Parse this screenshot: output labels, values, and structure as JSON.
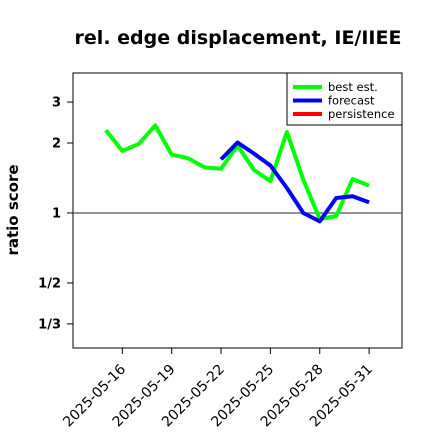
{
  "chart_data": {
    "type": "line",
    "title": "rel. edge displacement, IE/IIEE",
    "xlabel": "",
    "ylabel": "ratio score",
    "y_scale": "log",
    "ylim": [
      0.2625,
      4.0
    ],
    "reference_line": 1,
    "yticks": [
      {
        "value": 3,
        "label": "3"
      },
      {
        "value": 2,
        "label": "2"
      },
      {
        "value": 1,
        "label": "1"
      },
      {
        "value": 0.5,
        "label": "1/2"
      },
      {
        "value": 0.3333,
        "label": "1/3"
      }
    ],
    "xlim": [
      "2025-05-13",
      "2025-06-02"
    ],
    "xticks": [
      {
        "date": "2025-05-16",
        "label": "2025-05-16",
        "color": "#000000"
      },
      {
        "date": "2025-05-19",
        "label": "2025-05-19",
        "color": "#000000"
      },
      {
        "date": "2025-05-22",
        "label": "2025-05-22",
        "color": "#228B22"
      },
      {
        "date": "2025-05-25",
        "label": "2025-05-25",
        "color": "#000000"
      },
      {
        "date": "2025-05-28",
        "label": "2025-05-28",
        "color": "#000000"
      },
      {
        "date": "2025-05-31",
        "label": "2025-05-31",
        "color": "#000000"
      }
    ],
    "legend": {
      "placement": "top-right",
      "entries": [
        {
          "name": "best est.",
          "color": "#00ff00"
        },
        {
          "name": "forecast",
          "color": "#0000ff"
        },
        {
          "name": "persistence",
          "color": "#ff0000"
        }
      ]
    },
    "series": [
      {
        "name": "best est.",
        "color": "#00ff00",
        "points": [
          {
            "x": "2025-05-15",
            "y": 2.27
          },
          {
            "x": "2025-05-16",
            "y": 1.85
          },
          {
            "x": "2025-05-17",
            "y": 1.98
          },
          {
            "x": "2025-05-18",
            "y": 2.38
          },
          {
            "x": "2025-05-19",
            "y": 1.78
          },
          {
            "x": "2025-05-20",
            "y": 1.72
          },
          {
            "x": "2025-05-21",
            "y": 1.57
          },
          {
            "x": "2025-05-22",
            "y": 1.55
          },
          {
            "x": "2025-05-23",
            "y": 1.95
          },
          {
            "x": "2025-05-24",
            "y": 1.53
          },
          {
            "x": "2025-05-25",
            "y": 1.37
          },
          {
            "x": "2025-05-26",
            "y": 2.23
          },
          {
            "x": "2025-05-27",
            "y": 1.39
          },
          {
            "x": "2025-05-28",
            "y": 0.94
          },
          {
            "x": "2025-05-29",
            "y": 0.97
          },
          {
            "x": "2025-05-30",
            "y": 1.4
          },
          {
            "x": "2025-05-31",
            "y": 1.31
          }
        ]
      },
      {
        "name": "forecast",
        "color": "#0000ff",
        "points": [
          {
            "x": "2025-05-22",
            "y": 1.7
          },
          {
            "x": "2025-05-23",
            "y": 2.01
          },
          {
            "x": "2025-05-24",
            "y": 1.8
          },
          {
            "x": "2025-05-25",
            "y": 1.6
          },
          {
            "x": "2025-05-26",
            "y": 1.28
          },
          {
            "x": "2025-05-27",
            "y": 1.0
          },
          {
            "x": "2025-05-28",
            "y": 0.92
          },
          {
            "x": "2025-05-29",
            "y": 1.16
          },
          {
            "x": "2025-05-30",
            "y": 1.18
          },
          {
            "x": "2025-05-31",
            "y": 1.11
          }
        ]
      },
      {
        "name": "persistence",
        "color": "#ff0000",
        "points": []
      }
    ]
  }
}
